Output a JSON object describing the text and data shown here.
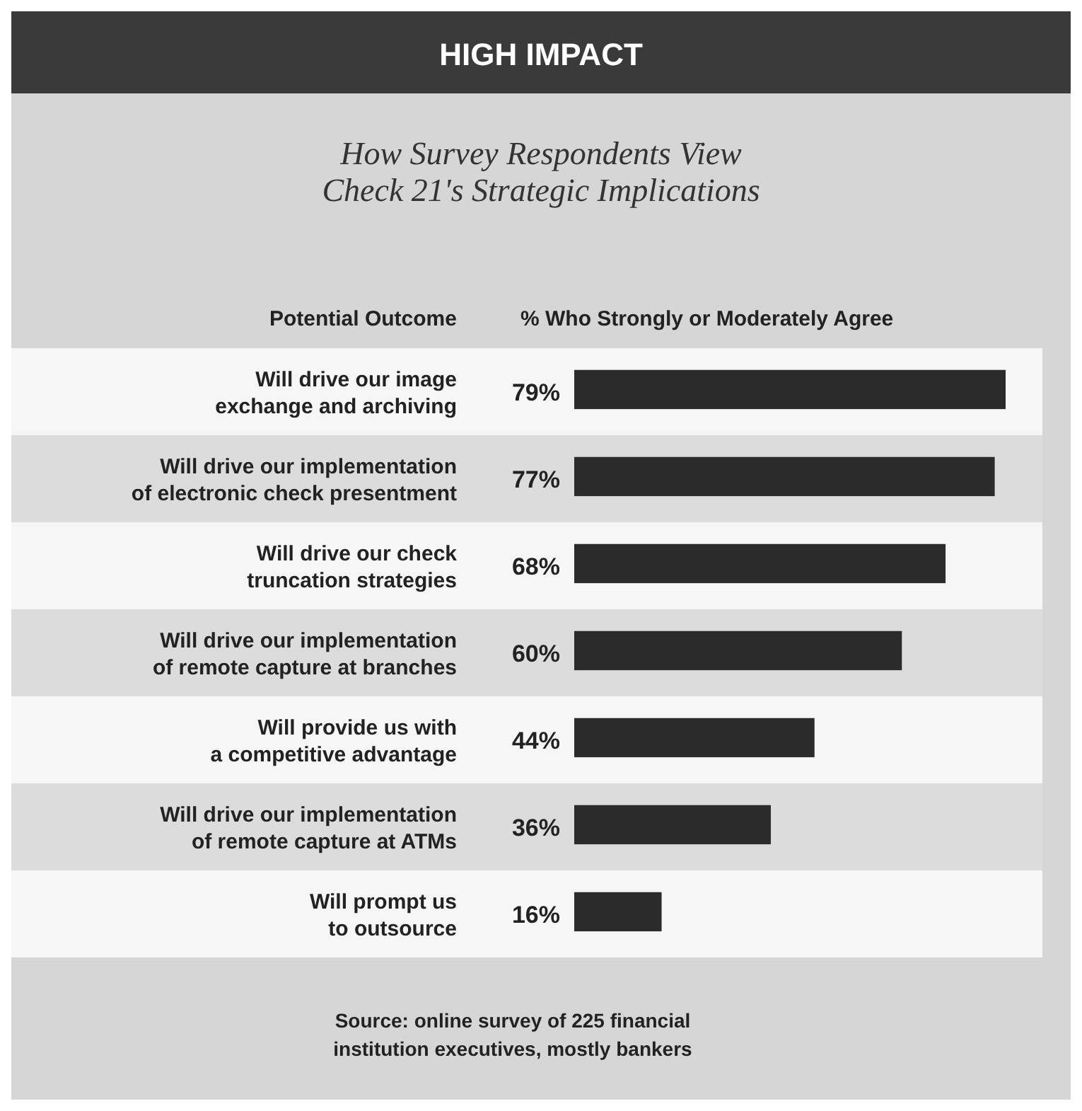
{
  "chart_data": {
    "type": "bar",
    "orientation": "horizontal",
    "title": "HIGH IMPACT",
    "subtitle": "How Survey Respondents View\nCheck 21's Strategic Implications",
    "ylabel": "Potential Outcome",
    "xlabel": "% Who Strongly or Moderately Agree",
    "categories": [
      "Will drive our image\nexchange and archiving",
      "Will drive our implementation\nof electronic check presentment",
      "Will drive our check\ntruncation strategies",
      "Will drive our implementation\nof remote capture at branches",
      "Will provide us with\na competitive advantage",
      "Will drive our implementation\nof remote capture at ATMs",
      "Will prompt us\nto outsource"
    ],
    "values": [
      79,
      77,
      68,
      60,
      44,
      36,
      16
    ],
    "value_labels": [
      "79%",
      "77%",
      "68%",
      "60%",
      "44%",
      "36%",
      "16%"
    ],
    "color": "#2b2b2b",
    "annotations": [
      "Source: online survey of 225 financial\ninstitution executives, mostly bankers"
    ]
  }
}
